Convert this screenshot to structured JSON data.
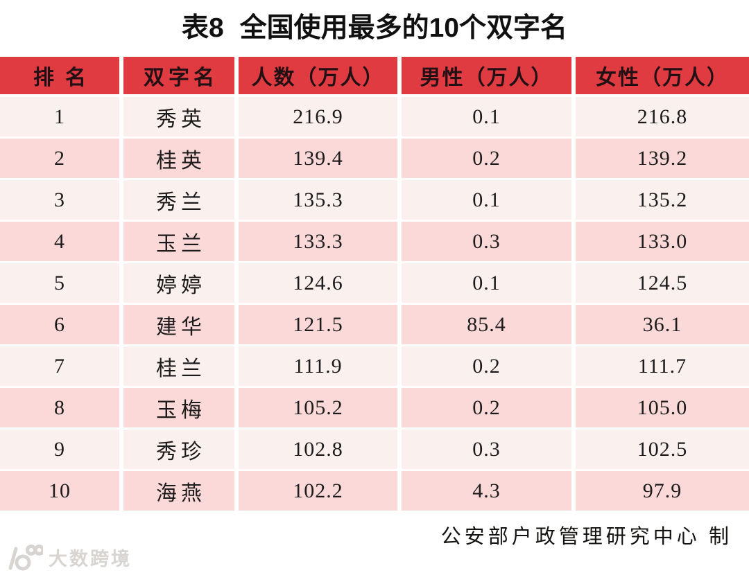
{
  "title": "表8 全国使用最多的10个双字名",
  "source": "公安部户政管理研究中心 制",
  "watermark": {
    "logo": "googol-10-to-100-logo",
    "text": "大数跨境"
  },
  "colors": {
    "header_bg": "#DF3B41",
    "header_fg": "#231014",
    "row_odd_bg": "#FAF0ED",
    "row_even_bg": "#FAD9D8",
    "cell_fg": "#1C1A1A",
    "watermark_fg": "#D7D4D2"
  },
  "chart_data": {
    "type": "table",
    "title": "表8 全国使用最多的10个双字名",
    "columns": [
      "排名",
      "双字名",
      "人数（万人）",
      "男性（万人）",
      "女性（万人）"
    ],
    "column_keys": [
      "rank",
      "name",
      "total",
      "male",
      "female"
    ],
    "rows": [
      [
        "1",
        "秀英",
        "216.9",
        "0.1",
        "216.8"
      ],
      [
        "2",
        "桂英",
        "139.4",
        "0.2",
        "139.2"
      ],
      [
        "3",
        "秀兰",
        "135.3",
        "0.1",
        "135.2"
      ],
      [
        "4",
        "玉兰",
        "133.3",
        "0.3",
        "133.0"
      ],
      [
        "5",
        "婷婷",
        "124.6",
        "0.1",
        "124.5"
      ],
      [
        "6",
        "建华",
        "121.5",
        "85.4",
        "36.1"
      ],
      [
        "7",
        "桂兰",
        "111.9",
        "0.2",
        "111.7"
      ],
      [
        "8",
        "玉梅",
        "105.2",
        "0.2",
        "105.0"
      ],
      [
        "9",
        "秀珍",
        "102.8",
        "0.3",
        "102.5"
      ],
      [
        "10",
        "海燕",
        "102.2",
        "4.3",
        "97.9"
      ]
    ],
    "source_note": "公安部户政管理研究中心 制"
  }
}
